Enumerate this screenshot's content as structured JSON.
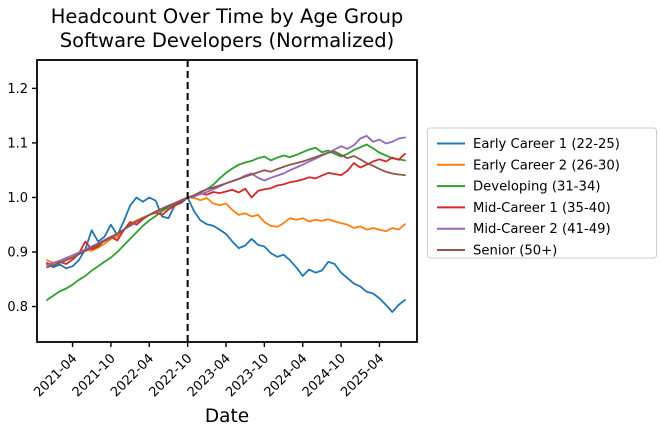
{
  "chart_data": {
    "type": "line",
    "title": "Headcount Over Time by Age Group",
    "subtitle": "Software Developers (Normalized)",
    "xlabel": "Date",
    "ylabel": "",
    "grid": false,
    "legend_position": "outside-right",
    "vline_month": "2022-10",
    "vline_style": "black-dashed",
    "y_ticks": [
      0.8,
      0.9,
      1.0,
      1.1,
      1.2
    ],
    "ylim": [
      0.735,
      1.252
    ],
    "xlim_index": [
      -1.56,
      57.87
    ],
    "x_tick_labels": [
      "2021-04",
      "2021-10",
      "2022-04",
      "2022-10",
      "2023-04",
      "2023-10",
      "2024-04",
      "2024-10",
      "2025-04"
    ],
    "x_months": [
      "2020-12",
      "2021-01",
      "2021-02",
      "2021-03",
      "2021-04",
      "2021-05",
      "2021-06",
      "2021-07",
      "2021-08",
      "2021-09",
      "2021-10",
      "2021-11",
      "2021-12",
      "2022-01",
      "2022-02",
      "2022-03",
      "2022-04",
      "2022-05",
      "2022-06",
      "2022-07",
      "2022-08",
      "2022-09",
      "2022-10",
      "2022-11",
      "2022-12",
      "2023-01",
      "2023-02",
      "2023-03",
      "2023-04",
      "2023-05",
      "2023-06",
      "2023-07",
      "2023-08",
      "2023-09",
      "2023-10",
      "2023-11",
      "2023-12",
      "2024-01",
      "2024-02",
      "2024-03",
      "2024-04",
      "2024-05",
      "2024-06",
      "2024-07",
      "2024-08",
      "2024-09",
      "2024-10",
      "2024-11",
      "2024-12",
      "2025-01",
      "2025-02",
      "2025-03",
      "2025-04",
      "2025-05",
      "2025-06",
      "2025-07",
      "2025-08"
    ],
    "series": [
      {
        "name": "Early Career 1 (22-25)",
        "color": "#1f77b4",
        "values": [
          0.878,
          0.872,
          0.877,
          0.87,
          0.874,
          0.885,
          0.905,
          0.94,
          0.919,
          0.928,
          0.95,
          0.931,
          0.956,
          0.985,
          1.0,
          0.992,
          1.0,
          0.994,
          0.965,
          0.962,
          0.986,
          0.99,
          1.0,
          0.975,
          0.958,
          0.951,
          0.948,
          0.941,
          0.933,
          0.919,
          0.907,
          0.912,
          0.924,
          0.913,
          0.91,
          0.898,
          0.891,
          0.895,
          0.885,
          0.872,
          0.856,
          0.868,
          0.862,
          0.866,
          0.882,
          0.878,
          0.862,
          0.852,
          0.842,
          0.837,
          0.827,
          0.824,
          0.815,
          0.803,
          0.79,
          0.803,
          0.812
        ]
      },
      {
        "name": "Early Career 2 (26-30)",
        "color": "#ff7f0e",
        "values": [
          0.885,
          0.88,
          0.884,
          0.886,
          0.89,
          0.896,
          0.905,
          0.902,
          0.908,
          0.915,
          0.924,
          0.928,
          0.94,
          0.952,
          0.958,
          0.963,
          0.968,
          0.972,
          0.978,
          0.983,
          0.988,
          0.994,
          1.0,
          0.999,
          0.995,
          0.999,
          0.989,
          0.986,
          0.989,
          0.977,
          0.968,
          0.971,
          0.965,
          0.968,
          0.955,
          0.948,
          0.946,
          0.953,
          0.962,
          0.959,
          0.962,
          0.956,
          0.959,
          0.957,
          0.96,
          0.956,
          0.953,
          0.95,
          0.944,
          0.947,
          0.941,
          0.944,
          0.941,
          0.938,
          0.944,
          0.941,
          0.951
        ]
      },
      {
        "name": "Developing (31-34)",
        "color": "#2ca02c",
        "values": [
          0.812,
          0.82,
          0.828,
          0.833,
          0.84,
          0.849,
          0.856,
          0.866,
          0.874,
          0.882,
          0.89,
          0.9,
          0.912,
          0.924,
          0.936,
          0.948,
          0.958,
          0.966,
          0.975,
          0.982,
          0.988,
          0.994,
          1.0,
          1.001,
          1.01,
          1.015,
          1.023,
          1.035,
          1.045,
          1.053,
          1.06,
          1.064,
          1.067,
          1.072,
          1.075,
          1.068,
          1.073,
          1.077,
          1.074,
          1.078,
          1.083,
          1.088,
          1.091,
          1.083,
          1.086,
          1.08,
          1.075,
          1.08,
          1.087,
          1.092,
          1.097,
          1.09,
          1.082,
          1.077,
          1.072,
          1.07,
          1.068
        ]
      },
      {
        "name": "Mid-Career 1 (35-40)",
        "color": "#d62728",
        "values": [
          0.88,
          0.875,
          0.882,
          0.878,
          0.886,
          0.897,
          0.919,
          0.905,
          0.91,
          0.922,
          0.928,
          0.921,
          0.94,
          0.955,
          0.95,
          0.96,
          0.968,
          0.972,
          0.968,
          0.978,
          0.985,
          0.992,
          1.0,
          1.003,
          1.008,
          1.005,
          1.01,
          1.008,
          1.011,
          1.014,
          1.009,
          1.016,
          1.0,
          1.012,
          1.015,
          1.017,
          1.022,
          1.024,
          1.028,
          1.03,
          1.033,
          1.037,
          1.035,
          1.04,
          1.045,
          1.043,
          1.041,
          1.049,
          1.063,
          1.055,
          1.06,
          1.066,
          1.07,
          1.066,
          1.073,
          1.069,
          1.08
        ]
      },
      {
        "name": "Mid-Career 2 (41-49)",
        "color": "#9467bd",
        "values": [
          0.876,
          0.88,
          0.884,
          0.889,
          0.894,
          0.899,
          0.905,
          0.91,
          0.916,
          0.922,
          0.928,
          0.934,
          0.941,
          0.948,
          0.955,
          0.962,
          0.968,
          0.974,
          0.98,
          0.985,
          0.99,
          0.995,
          1.0,
          1.002,
          1.006,
          1.01,
          1.015,
          1.02,
          1.026,
          1.03,
          1.034,
          1.04,
          1.044,
          1.036,
          1.031,
          1.036,
          1.04,
          1.044,
          1.05,
          1.055,
          1.06,
          1.066,
          1.071,
          1.077,
          1.082,
          1.088,
          1.094,
          1.089,
          1.096,
          1.108,
          1.113,
          1.102,
          1.106,
          1.099,
          1.102,
          1.108,
          1.11
        ]
      },
      {
        "name": "Senior (50+)",
        "color": "#8c564b",
        "values": [
          0.872,
          0.876,
          0.88,
          0.885,
          0.89,
          0.896,
          0.902,
          0.908,
          0.914,
          0.92,
          0.926,
          0.933,
          0.941,
          0.949,
          0.956,
          0.962,
          0.968,
          0.974,
          0.979,
          0.984,
          0.989,
          0.995,
          1.0,
          1.004,
          1.01,
          1.015,
          1.018,
          1.022,
          1.026,
          1.03,
          1.034,
          1.038,
          1.042,
          1.046,
          1.05,
          1.047,
          1.052,
          1.056,
          1.06,
          1.063,
          1.066,
          1.07,
          1.074,
          1.078,
          1.082,
          1.084,
          1.078,
          1.072,
          1.076,
          1.07,
          1.063,
          1.058,
          1.052,
          1.047,
          1.044,
          1.042,
          1.041
        ]
      }
    ]
  }
}
